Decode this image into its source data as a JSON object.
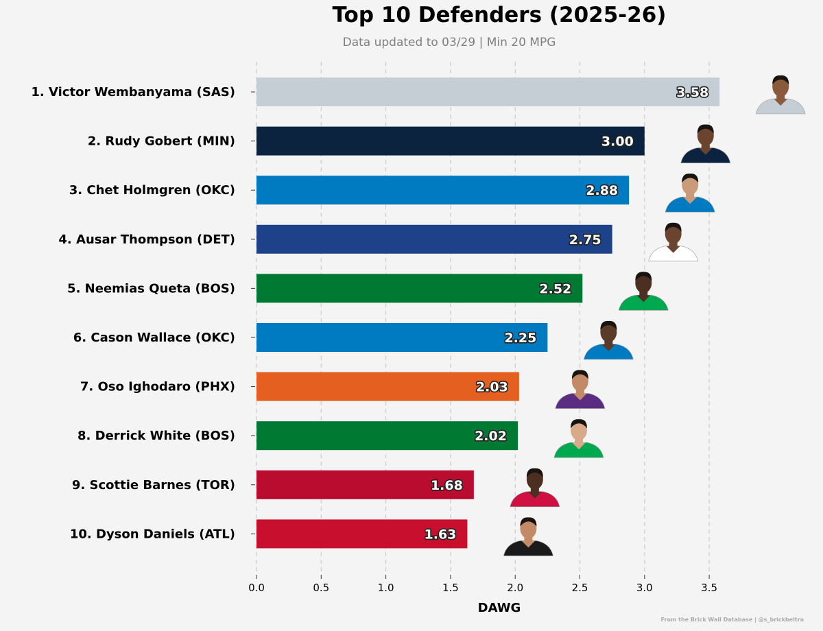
{
  "chart_data": {
    "type": "bar",
    "orientation": "horizontal",
    "title": "Top 10 Defenders (2025-26)",
    "subtitle": "Data updated to 03/29 | Min 20 MPG",
    "xlabel": "DAWG",
    "ylabel": "",
    "xlim": [
      0,
      3.95
    ],
    "xticks": [
      "0.0",
      "0.5",
      "1.0",
      "1.5",
      "2.0",
      "2.5",
      "3.0",
      "3.5"
    ],
    "grid": "vertical dashed",
    "categories": [
      "1. Victor Wembanyama (SAS)",
      "2. Rudy Gobert (MIN)",
      "3. Chet Holmgren (OKC)",
      "4. Ausar Thompson (DET)",
      "5. Neemias Queta (BOS)",
      "6. Cason Wallace (OKC)",
      "7. Oso Ighodaro (PHX)",
      "8. Derrick White (BOS)",
      "9. Scottie Barnes (TOR)",
      "10. Dyson Daniels (ATL)"
    ],
    "values": [
      3.58,
      3.0,
      2.88,
      2.75,
      2.52,
      2.25,
      2.03,
      2.02,
      1.68,
      1.63
    ],
    "value_labels": [
      "3.58",
      "3.00",
      "2.88",
      "2.75",
      "2.52",
      "2.25",
      "2.03",
      "2.02",
      "1.68",
      "1.63"
    ],
    "bar_colors": [
      "#c4ced4",
      "#0c2340",
      "#007ac1",
      "#1d428a",
      "#007a33",
      "#007ac1",
      "#e56020",
      "#007a33",
      "#ba0c2f",
      "#c8102e"
    ],
    "jersey_colors": [
      "#c4ced4",
      "#0c2340",
      "#007ac1",
      "#ffffff",
      "#00a94f",
      "#007ac1",
      "#5a2d82",
      "#00a94f",
      "#ce1141",
      "#1a1a1a"
    ],
    "skin_tones": [
      "#8a5a3c",
      "#6b4430",
      "#c99b7a",
      "#6b4430",
      "#4b3022",
      "#5a3a28",
      "#c28a66",
      "#d8a98a",
      "#4b3022",
      "#c28a66"
    ]
  },
  "credit": "From the Brick Wall Database | @s_brickbeltra"
}
